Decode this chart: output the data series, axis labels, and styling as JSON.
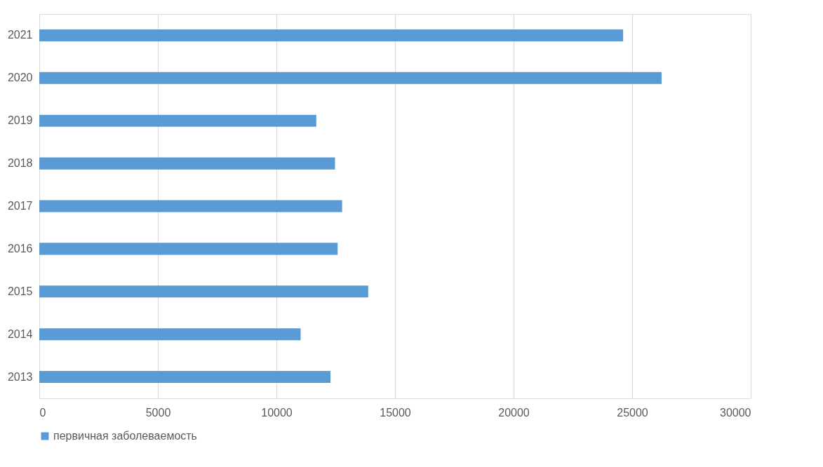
{
  "chart_data": {
    "type": "bar",
    "orientation": "horizontal",
    "categories": [
      "2021",
      "2020",
      "2019",
      "2018",
      "2017",
      "2016",
      "2015",
      "2014",
      "2013"
    ],
    "series": [
      {
        "name": "первичная заболеваемость",
        "color": "#5b9bd5",
        "values": [
          24620,
          26240,
          11680,
          12470,
          12770,
          12580,
          13870,
          11020,
          12280
        ]
      }
    ],
    "xlim": [
      0,
      30000
    ],
    "xticks": [
      0,
      5000,
      10000,
      15000,
      20000,
      25000,
      30000
    ],
    "grid": "x",
    "legend": "bottom"
  }
}
